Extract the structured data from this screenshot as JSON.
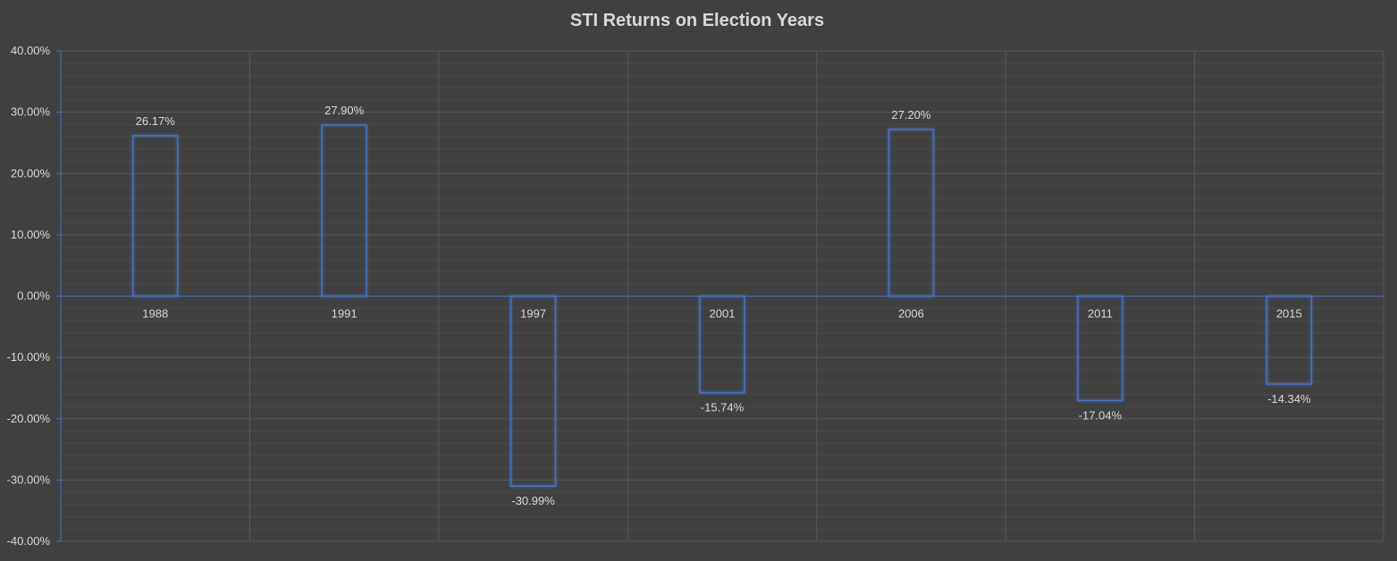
{
  "chart_data": {
    "type": "bar",
    "title": "STI Returns on Election Years",
    "categories": [
      "1988",
      "1991",
      "1997",
      "2001",
      "2006",
      "2011",
      "2015"
    ],
    "values": [
      26.17,
      27.9,
      -30.99,
      -15.74,
      27.2,
      -17.04,
      -14.34
    ],
    "data_labels": [
      "26.17%",
      "27.90%",
      "-30.99%",
      "-15.74%",
      "27.20%",
      "-17.04%",
      "-14.34%"
    ],
    "y_ticks": [
      "40.00%",
      "30.00%",
      "20.00%",
      "10.00%",
      "0.00%",
      "-10.00%",
      "-20.00%",
      "-30.00%",
      "-40.00%"
    ],
    "ylim": [
      -40,
      40
    ],
    "y_tick_values": [
      40,
      30,
      20,
      10,
      0,
      -10,
      -20,
      -30,
      -40
    ],
    "grid": true,
    "legend": "none",
    "colors": {
      "background": "#404040",
      "bar_outline": "#4472c4",
      "axis": "#4472c4",
      "gridline": "#595959",
      "text": "#d9d9d9"
    }
  }
}
